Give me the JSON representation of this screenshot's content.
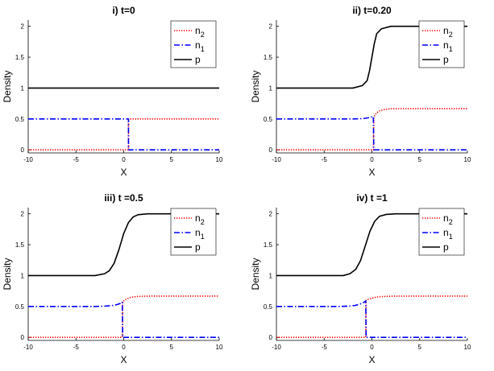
{
  "chart_data": [
    {
      "type": "line",
      "title": "i) t=0",
      "xlabel": "X",
      "ylabel": "Density",
      "xlim": [
        -10,
        10
      ],
      "ylim": [
        -0.05,
        2.1
      ],
      "xticks": [
        -10,
        -5,
        0,
        5,
        10
      ],
      "yticks": [
        0,
        0.5,
        1,
        1.5,
        2
      ],
      "grid": false,
      "legend_position": "top-right",
      "series": [
        {
          "key": "n2",
          "name": "n",
          "sub": "2",
          "color": "#ff0000",
          "style": "dotted",
          "x": [
            -10,
            0.5,
            0.5,
            10
          ],
          "y": [
            0,
            0,
            0.5,
            0.5
          ]
        },
        {
          "key": "n1",
          "name": "n",
          "sub": "1",
          "color": "#0000ff",
          "style": "dashdot",
          "x": [
            -10,
            0.5,
            0.5,
            10
          ],
          "y": [
            0.5,
            0.5,
            0,
            0
          ]
        },
        {
          "key": "p",
          "name": "p",
          "sub": "",
          "color": "#000000",
          "style": "solid",
          "x": [
            -10,
            10
          ],
          "y": [
            1,
            1
          ]
        }
      ]
    },
    {
      "type": "line",
      "title": "ii) t=0.20",
      "xlabel": "X",
      "ylabel": "Density",
      "xlim": [
        -10,
        10
      ],
      "ylim": [
        -0.05,
        2.1
      ],
      "xticks": [
        -10,
        -5,
        0,
        5,
        10
      ],
      "yticks": [
        0,
        0.5,
        1,
        1.5,
        2
      ],
      "grid": false,
      "legend_position": "top-right",
      "series": [
        {
          "key": "n2",
          "name": "n",
          "sub": "2",
          "color": "#ff0000",
          "style": "dotted",
          "x": [
            -10,
            0.15,
            0.2,
            0.3,
            0.5,
            0.8,
            1.2,
            2,
            3,
            10
          ],
          "y": [
            0,
            0,
            0.52,
            0.56,
            0.6,
            0.63,
            0.65,
            0.665,
            0.667,
            0.667
          ]
        },
        {
          "key": "n1",
          "name": "n",
          "sub": "1",
          "color": "#0000ff",
          "style": "dashdot",
          "x": [
            -10,
            -2,
            -1,
            -0.5,
            -0.2,
            0,
            0.15,
            0.2,
            10
          ],
          "y": [
            0.5,
            0.5,
            0.505,
            0.515,
            0.525,
            0.535,
            0.54,
            0,
            0
          ]
        },
        {
          "key": "p",
          "name": "p",
          "sub": "",
          "color": "#000000",
          "style": "solid",
          "x": [
            -10,
            -2,
            -1,
            -0.5,
            -0.25,
            0,
            0.25,
            0.5,
            1,
            2,
            10
          ],
          "y": [
            1,
            1.0,
            1.04,
            1.12,
            1.28,
            1.5,
            1.72,
            1.88,
            1.96,
            2.0,
            2.0
          ]
        }
      ]
    },
    {
      "type": "line",
      "title": "iii) t =0.5",
      "xlabel": "X",
      "ylabel": "Density",
      "xlim": [
        -10,
        10
      ],
      "ylim": [
        -0.05,
        2.1
      ],
      "xticks": [
        -10,
        -5,
        0,
        5,
        10
      ],
      "yticks": [
        0,
        0.5,
        1,
        1.5,
        2
      ],
      "grid": false,
      "legend_position": "top-right",
      "series": [
        {
          "key": "n2",
          "name": "n",
          "sub": "2",
          "color": "#ff0000",
          "style": "dotted",
          "x": [
            -10,
            -0.15,
            -0.1,
            0,
            0.3,
            0.7,
            1.2,
            2,
            3,
            10
          ],
          "y": [
            0,
            0,
            0.57,
            0.59,
            0.62,
            0.645,
            0.658,
            0.665,
            0.667,
            0.667
          ]
        },
        {
          "key": "n1",
          "name": "n",
          "sub": "1",
          "color": "#0000ff",
          "style": "dashdot",
          "x": [
            -10,
            -3,
            -2,
            -1.2,
            -0.7,
            -0.35,
            -0.15,
            -0.1,
            10
          ],
          "y": [
            0.5,
            0.5,
            0.505,
            0.515,
            0.53,
            0.55,
            0.57,
            0,
            0
          ]
        },
        {
          "key": "p",
          "name": "p",
          "sub": "",
          "color": "#000000",
          "style": "solid",
          "x": [
            -10,
            -3,
            -2,
            -1.5,
            -1,
            -0.5,
            0,
            0.5,
            1,
            1.5,
            2.5,
            10
          ],
          "y": [
            1,
            1.0,
            1.03,
            1.08,
            1.2,
            1.42,
            1.68,
            1.86,
            1.95,
            1.985,
            2.0,
            2.0
          ]
        }
      ]
    },
    {
      "type": "line",
      "title": "iv) t =1",
      "xlabel": "X",
      "ylabel": "Density",
      "xlim": [
        -10,
        10
      ],
      "ylim": [
        -0.05,
        2.1
      ],
      "xticks": [
        -10,
        -5,
        0,
        5,
        10
      ],
      "yticks": [
        0,
        0.5,
        1,
        1.5,
        2
      ],
      "grid": false,
      "legend_position": "top-right",
      "series": [
        {
          "key": "n2",
          "name": "n",
          "sub": "2",
          "color": "#ff0000",
          "style": "dotted",
          "x": [
            -10,
            -0.65,
            -0.6,
            -0.4,
            0,
            0.5,
            1,
            2,
            3,
            10
          ],
          "y": [
            0,
            0,
            0.6,
            0.615,
            0.635,
            0.652,
            0.66,
            0.666,
            0.667,
            0.667
          ]
        },
        {
          "key": "n1",
          "name": "n",
          "sub": "1",
          "color": "#0000ff",
          "style": "dashdot",
          "x": [
            -10,
            -3.5,
            -2.5,
            -1.8,
            -1.3,
            -0.9,
            -0.65,
            -0.6,
            10
          ],
          "y": [
            0.5,
            0.5,
            0.505,
            0.515,
            0.535,
            0.56,
            0.59,
            0,
            0
          ]
        },
        {
          "key": "p",
          "name": "p",
          "sub": "",
          "color": "#000000",
          "style": "solid",
          "x": [
            -10,
            -3,
            -2.3,
            -1.7,
            -1.2,
            -0.7,
            -0.2,
            0.3,
            0.8,
            1.5,
            2.5,
            10
          ],
          "y": [
            1,
            1.0,
            1.03,
            1.1,
            1.24,
            1.48,
            1.72,
            1.88,
            1.96,
            1.99,
            2.0,
            2.0
          ]
        }
      ]
    }
  ]
}
